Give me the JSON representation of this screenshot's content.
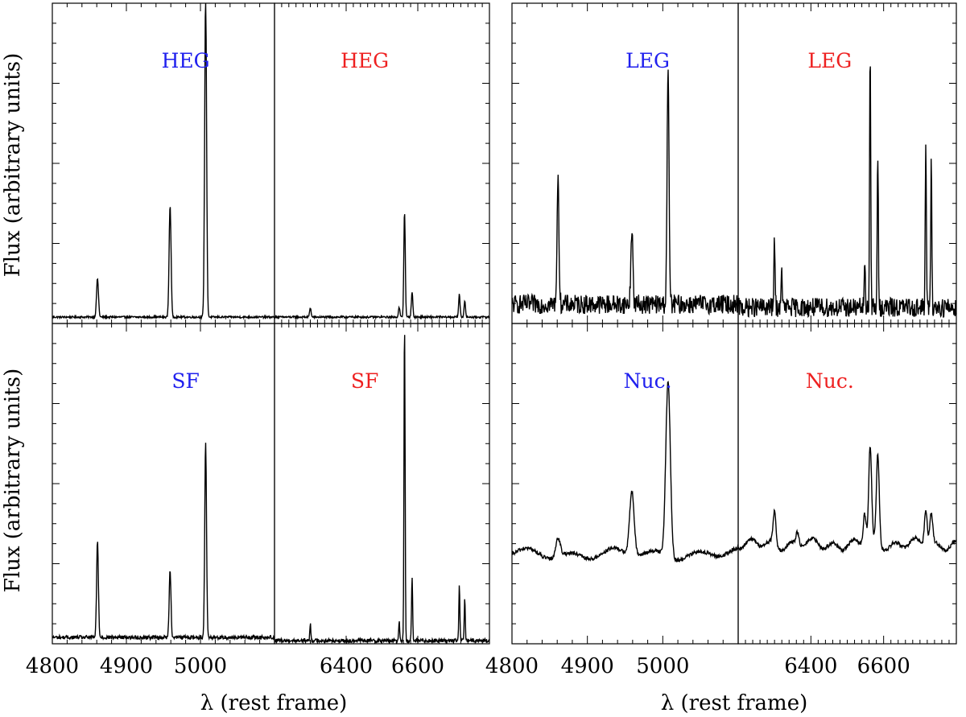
{
  "chart_data": {
    "type": "line",
    "title": "",
    "colors": {
      "blue_label": "#2020ee",
      "red_label": "#ee2020",
      "line": "#000000"
    },
    "axes": {
      "ylabel": "Flux (arbitrary units)",
      "xlabel": "λ (rest frame)",
      "blue_window": {
        "xlim": [
          4800,
          5100
        ],
        "xticks": [
          4800,
          4900,
          5000
        ]
      },
      "red_window": {
        "xlim": [
          6200,
          6800
        ],
        "xticks": [
          6400,
          6600
        ]
      }
    },
    "panels": [
      {
        "id": "heg-blue",
        "label": "HEG",
        "label_color": "blue",
        "window": "blue",
        "grid": "left-top",
        "baseline": 0.02,
        "noise": 0.003,
        "lines": [
          {
            "x": 4861,
            "y": 0.12,
            "w": 1.3
          },
          {
            "x": 4959,
            "y": 0.35,
            "w": 1.3
          },
          {
            "x": 5007,
            "y": 1.0,
            "w": 1.3
          }
        ]
      },
      {
        "id": "heg-red",
        "label": "HEG",
        "label_color": "red",
        "window": "red",
        "grid": "left-top",
        "baseline": 0.02,
        "noise": 0.003,
        "lines": [
          {
            "x": 6300,
            "y": 0.03,
            "w": 2
          },
          {
            "x": 6548,
            "y": 0.03,
            "w": 2
          },
          {
            "x": 6563,
            "y": 0.33,
            "w": 2
          },
          {
            "x": 6584,
            "y": 0.08,
            "w": 2
          },
          {
            "x": 6716,
            "y": 0.07,
            "w": 2
          },
          {
            "x": 6731,
            "y": 0.05,
            "w": 2
          }
        ]
      },
      {
        "id": "leg-blue",
        "label": "LEG",
        "label_color": "blue",
        "window": "blue",
        "grid": "right-top",
        "baseline": 0.06,
        "noise": 0.03,
        "lines": [
          {
            "x": 4861,
            "y": 0.38,
            "w": 1.3
          },
          {
            "x": 4959,
            "y": 0.24,
            "w": 1.3
          },
          {
            "x": 5007,
            "y": 0.72,
            "w": 1.3
          }
        ]
      },
      {
        "id": "leg-red",
        "label": "LEG",
        "label_color": "red",
        "window": "red",
        "grid": "right-top",
        "baseline": 0.05,
        "noise": 0.03,
        "lines": [
          {
            "x": 6300,
            "y": 0.22,
            "w": 1.5
          },
          {
            "x": 6320,
            "y": 0.12,
            "w": 1.5
          },
          {
            "x": 6548,
            "y": 0.14,
            "w": 1.5
          },
          {
            "x": 6563,
            "y": 0.82,
            "w": 1.5
          },
          {
            "x": 6584,
            "y": 0.48,
            "w": 1.5
          },
          {
            "x": 6716,
            "y": 0.52,
            "w": 1.5
          },
          {
            "x": 6731,
            "y": 0.44,
            "w": 1.5
          }
        ]
      },
      {
        "id": "sf-blue",
        "label": "SF",
        "label_color": "blue",
        "window": "blue",
        "grid": "left-bottom",
        "baseline": 0.02,
        "noise": 0.006,
        "lines": [
          {
            "x": 4861,
            "y": 0.3,
            "w": 1.2
          },
          {
            "x": 4959,
            "y": 0.21,
            "w": 1.2
          },
          {
            "x": 5007,
            "y": 0.61,
            "w": 1.2
          }
        ]
      },
      {
        "id": "sf-red",
        "label": "SF",
        "label_color": "red",
        "window": "red",
        "grid": "left-bottom",
        "baseline": 0.01,
        "noise": 0.006,
        "lines": [
          {
            "x": 6300,
            "y": 0.05,
            "w": 1.5
          },
          {
            "x": 6548,
            "y": 0.06,
            "w": 1.5
          },
          {
            "x": 6563,
            "y": 1.0,
            "w": 1.5
          },
          {
            "x": 6584,
            "y": 0.2,
            "w": 1.5
          },
          {
            "x": 6716,
            "y": 0.17,
            "w": 1.5
          },
          {
            "x": 6731,
            "y": 0.13,
            "w": 1.5
          }
        ]
      },
      {
        "id": "nuc-blue",
        "label": "Nuc.",
        "label_color": "blue",
        "window": "blue",
        "grid": "right-bottom",
        "baseline": 0.28,
        "noise": 0.006,
        "lines": [
          {
            "x": 4861,
            "y": 0.06,
            "w": 3
          },
          {
            "x": 4959,
            "y": 0.2,
            "w": 3
          },
          {
            "x": 5007,
            "y": 0.55,
            "w": 3
          }
        ]
      },
      {
        "id": "nuc-red",
        "label": "Nuc.",
        "label_color": "red",
        "window": "red",
        "grid": "right-bottom",
        "baseline": 0.31,
        "noise": 0.006,
        "lines": [
          {
            "x": 6300,
            "y": 0.1,
            "w": 4
          },
          {
            "x": 6363,
            "y": 0.04,
            "w": 4
          },
          {
            "x": 6548,
            "y": 0.1,
            "w": 4
          },
          {
            "x": 6563,
            "y": 0.3,
            "w": 4
          },
          {
            "x": 6584,
            "y": 0.28,
            "w": 4
          },
          {
            "x": 6716,
            "y": 0.12,
            "w": 4
          },
          {
            "x": 6731,
            "y": 0.1,
            "w": 4
          }
        ]
      }
    ]
  }
}
